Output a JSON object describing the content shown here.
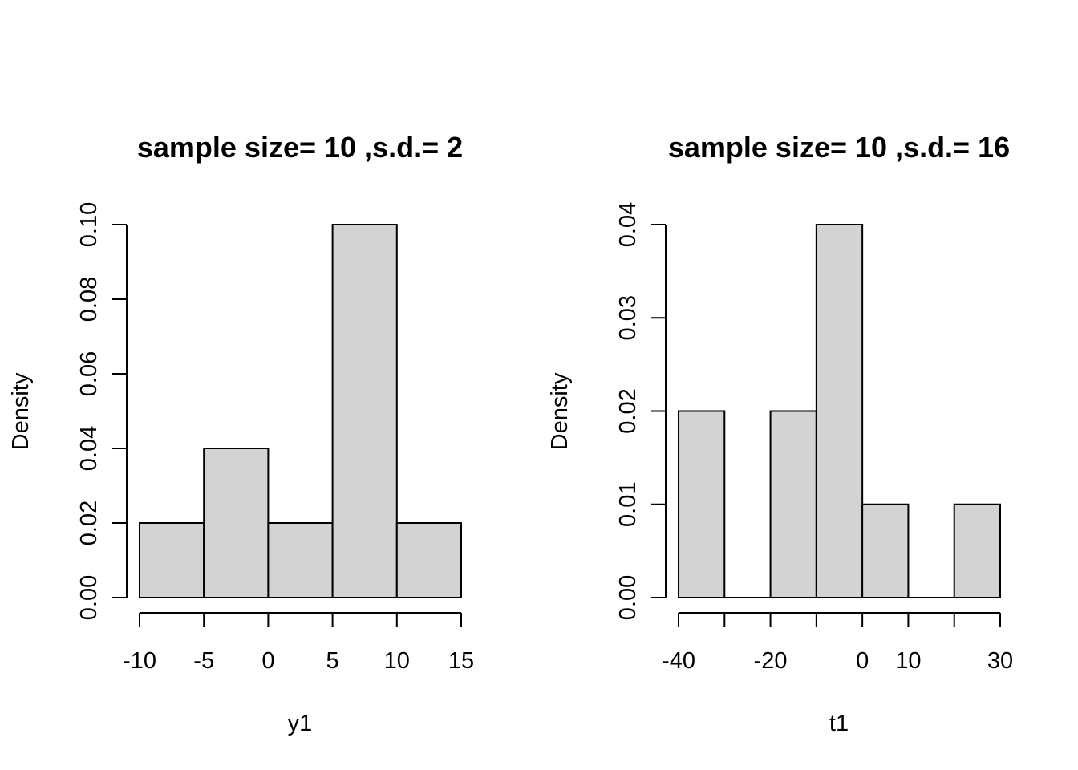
{
  "figure": {
    "bar_fill": "#d3d3d3",
    "bar_stroke": "#000000",
    "background": "#ffffff"
  },
  "chart_data": [
    {
      "type": "bar",
      "title": "sample size= 10 ,s.d.= 2",
      "xlabel": "y1",
      "ylabel": "Density",
      "bins": [
        {
          "start": -10,
          "end": -5,
          "density": 0.02
        },
        {
          "start": -5,
          "end": 0,
          "density": 0.04
        },
        {
          "start": 0,
          "end": 5,
          "density": 0.02
        },
        {
          "start": 5,
          "end": 10,
          "density": 0.1
        },
        {
          "start": 10,
          "end": 15,
          "density": 0.02
        }
      ],
      "xlim": [
        -10,
        15
      ],
      "ylim": [
        0,
        0.1
      ],
      "xticks": [
        -10,
        -5,
        0,
        5,
        10,
        15
      ],
      "xtick_labels": [
        "-10",
        "-5",
        "0",
        "5",
        "10",
        "15"
      ],
      "yticks": [
        0,
        0.02,
        0.04,
        0.06,
        0.08,
        0.1
      ],
      "ytick_labels": [
        "0.00",
        "0.02",
        "0.04",
        "0.06",
        "0.08",
        "0.10"
      ],
      "grid": false
    },
    {
      "type": "bar",
      "title": "sample size= 10 ,s.d.= 16",
      "xlabel": "t1",
      "ylabel": "Density",
      "bins": [
        {
          "start": -40,
          "end": -30,
          "density": 0.02
        },
        {
          "start": -30,
          "end": -20,
          "density": 0.0
        },
        {
          "start": -20,
          "end": -10,
          "density": 0.02
        },
        {
          "start": -10,
          "end": 0,
          "density": 0.04
        },
        {
          "start": 0,
          "end": 10,
          "density": 0.01
        },
        {
          "start": 10,
          "end": 20,
          "density": 0.0
        },
        {
          "start": 20,
          "end": 30,
          "density": 0.01
        }
      ],
      "xlim": [
        -40,
        30
      ],
      "ylim": [
        0,
        0.04
      ],
      "xticks": [
        -40,
        -30,
        -20,
        -10,
        0,
        10,
        20,
        30
      ],
      "xtick_labels": [
        "-40",
        "",
        "-20",
        "",
        "0",
        "10",
        "",
        "30"
      ],
      "yticks": [
        0,
        0.01,
        0.02,
        0.03,
        0.04
      ],
      "ytick_labels": [
        "0.00",
        "0.01",
        "0.02",
        "0.03",
        "0.04"
      ],
      "grid": false
    }
  ]
}
